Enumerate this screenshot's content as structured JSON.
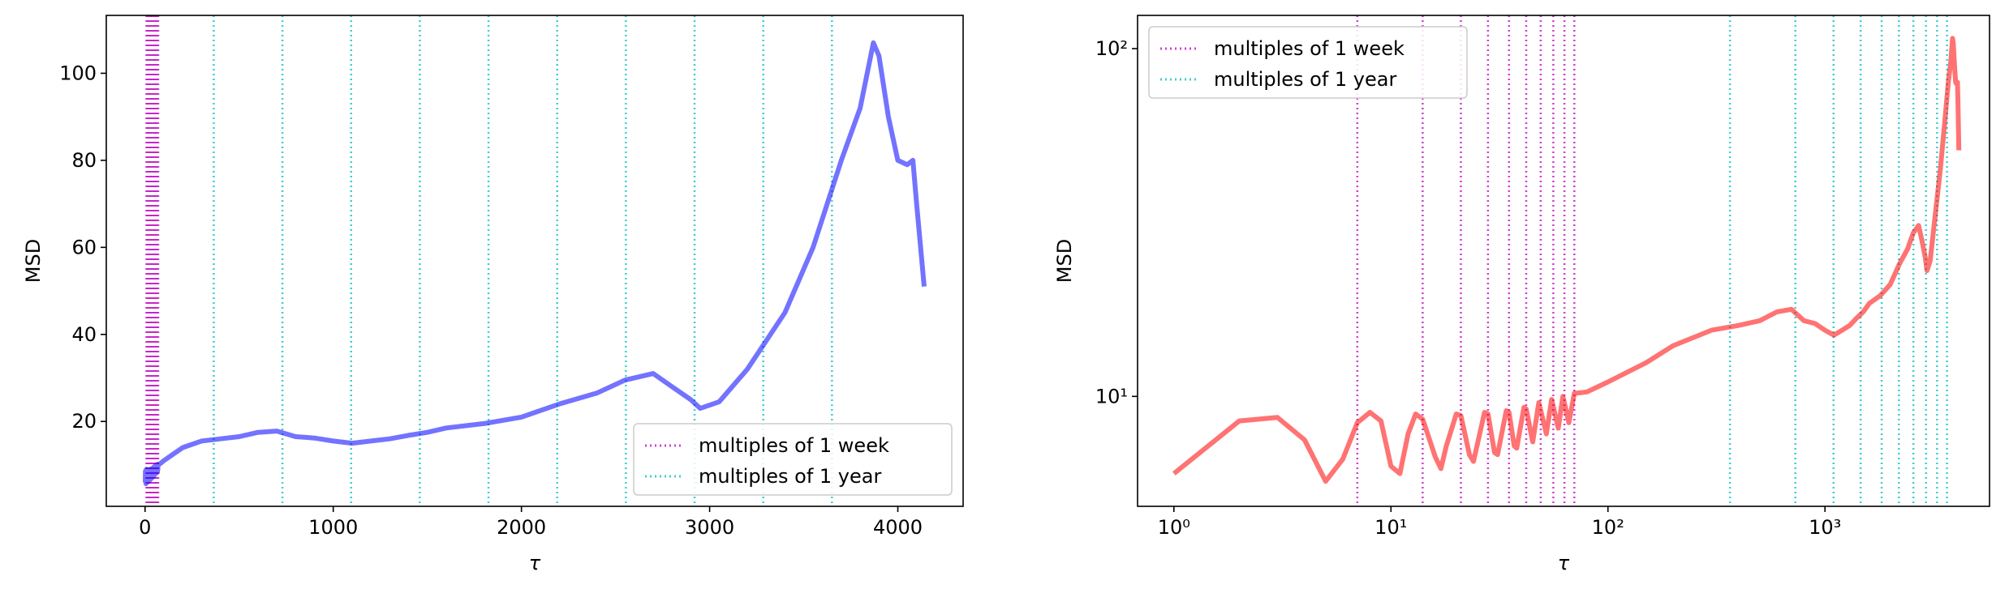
{
  "chart_data": [
    {
      "type": "line",
      "xlabel": "τ",
      "ylabel": "MSD",
      "xscale": "linear",
      "yscale": "linear",
      "xlim": [
        -206,
        4347
      ],
      "ylim": [
        0.5,
        113.3
      ],
      "xticks": [
        0,
        1000,
        2000,
        3000,
        4000
      ],
      "yticks": [
        20,
        40,
        60,
        80,
        100
      ],
      "legend": "lower right",
      "x": [
        1,
        2,
        3,
        4,
        5,
        6,
        7,
        8,
        9,
        10,
        11,
        12,
        13,
        14,
        16,
        17,
        18,
        20,
        21,
        23,
        24,
        27,
        28,
        30,
        31,
        34,
        35,
        37,
        38,
        41,
        42,
        45,
        48,
        52,
        55,
        59,
        62,
        66,
        70,
        80,
        100,
        150,
        200,
        300,
        400,
        500,
        600,
        700,
        800,
        900,
        1000,
        1100,
        1200,
        1300,
        1400,
        1500,
        1600,
        1800,
        2000,
        2200,
        2400,
        2550,
        2650,
        2700,
        2800,
        2900,
        2950,
        3050,
        3200,
        3400,
        3550,
        3700,
        3800,
        3870,
        3900,
        3950,
        4000,
        4050,
        4080,
        4100,
        4140
      ],
      "series": [
        {
          "color": "#0000ff",
          "values": [
            6.0,
            8.5,
            8.7,
            7.5,
            5.7,
            6.6,
            8.4,
            9.0,
            8.5,
            6.3,
            6.0,
            7.8,
            8.9,
            8.6,
            6.7,
            6.2,
            7.2,
            8.9,
            8.8,
            6.8,
            6.5,
            9.0,
            8.9,
            6.9,
            6.8,
            9.1,
            9.0,
            7.2,
            7.1,
            9.3,
            9.2,
            7.4,
            9.6,
            7.8,
            9.8,
            8.1,
            10.0,
            8.4,
            10.2,
            10.3,
            11.0,
            12.5,
            14.0,
            15.5,
            16.0,
            16.5,
            17.5,
            17.8,
            16.5,
            16.2,
            15.5,
            15.0,
            15.5,
            16.0,
            16.8,
            17.5,
            18.5,
            19.5,
            21.0,
            24.0,
            26.5,
            29.5,
            30.5,
            31.0,
            28.0,
            25.0,
            23.0,
            24.5,
            32.0,
            45.0,
            60.0,
            80.0,
            92.0,
            107.0,
            104.0,
            90.0,
            80.0,
            79.0,
            80.0,
            70.0,
            51.0
          ]
        }
      ],
      "vlines": [
        {
          "name": "multiples of 1 week",
          "color": "#bf00bf",
          "x": [
            7,
            14,
            21,
            28,
            35,
            42,
            49,
            56,
            63,
            70
          ]
        },
        {
          "name": "multiples of 1 year",
          "color": "#00bfbf",
          "x": [
            365,
            730,
            1095,
            1460,
            1825,
            2190,
            2555,
            2920,
            3285,
            3650
          ]
        }
      ]
    },
    {
      "type": "line",
      "xlabel": "τ",
      "ylabel": "MSD",
      "xscale": "log",
      "yscale": "log",
      "xlim": [
        0.68,
        5730
      ],
      "ylim": [
        4.83,
        124.6
      ],
      "xticks": [
        {
          "value": 1,
          "label": "10⁰"
        },
        {
          "value": 10,
          "label": "10¹"
        },
        {
          "value": 100,
          "label": "10²"
        },
        {
          "value": 1000,
          "label": "10³"
        }
      ],
      "yticks": [
        {
          "value": 10,
          "label": "10¹"
        },
        {
          "value": 100,
          "label": "10²"
        }
      ],
      "legend": "upper left",
      "x": [
        1,
        2,
        3,
        4,
        5,
        6,
        7,
        8,
        9,
        10,
        11,
        12,
        13,
        14,
        16,
        17,
        18,
        20,
        21,
        23,
        24,
        27,
        28,
        30,
        31,
        34,
        35,
        37,
        38,
        41,
        42,
        45,
        48,
        52,
        55,
        59,
        62,
        66,
        70,
        80,
        100,
        150,
        200,
        300,
        400,
        500,
        600,
        700,
        800,
        900,
        1000,
        1100,
        1200,
        1300,
        1400,
        1500,
        1600,
        1800,
        2000,
        2200,
        2400,
        2550,
        2650,
        2700,
        2800,
        2900,
        2950,
        3050,
        3200,
        3400,
        3550,
        3700,
        3800,
        3870,
        3900,
        3950,
        4000,
        4050,
        4080,
        4100,
        4140
      ],
      "series": [
        {
          "color": "#ff0000",
          "values": [
            6.0,
            8.5,
            8.7,
            7.5,
            5.7,
            6.6,
            8.4,
            9.0,
            8.5,
            6.3,
            6.0,
            7.8,
            8.9,
            8.6,
            6.7,
            6.2,
            7.2,
            8.9,
            8.8,
            6.8,
            6.5,
            9.0,
            8.9,
            6.9,
            6.8,
            9.1,
            9.0,
            7.2,
            7.1,
            9.3,
            9.2,
            7.4,
            9.6,
            7.8,
            9.8,
            8.1,
            10.0,
            8.4,
            10.2,
            10.3,
            11.0,
            12.5,
            14.0,
            15.5,
            16.0,
            16.5,
            17.5,
            17.8,
            16.5,
            16.2,
            15.5,
            15.0,
            15.5,
            16.0,
            16.8,
            17.5,
            18.5,
            19.5,
            21.0,
            24.0,
            26.5,
            29.5,
            30.5,
            31.0,
            28.0,
            25.0,
            23.0,
            24.5,
            32.0,
            45.0,
            60.0,
            80.0,
            92.0,
            107.0,
            104.0,
            90.0,
            80.0,
            79.0,
            80.0,
            70.0,
            51.0
          ]
        }
      ],
      "vlines": [
        {
          "name": "multiples of 1 week",
          "color": "#bf00bf",
          "x": [
            7,
            14,
            21,
            28,
            35,
            42,
            49,
            56,
            63,
            70
          ]
        },
        {
          "name": "multiples of 1 year",
          "color": "#00bfbf",
          "x": [
            365,
            730,
            1095,
            1460,
            1825,
            2190,
            2555,
            2920,
            3285,
            3650
          ]
        }
      ]
    }
  ]
}
